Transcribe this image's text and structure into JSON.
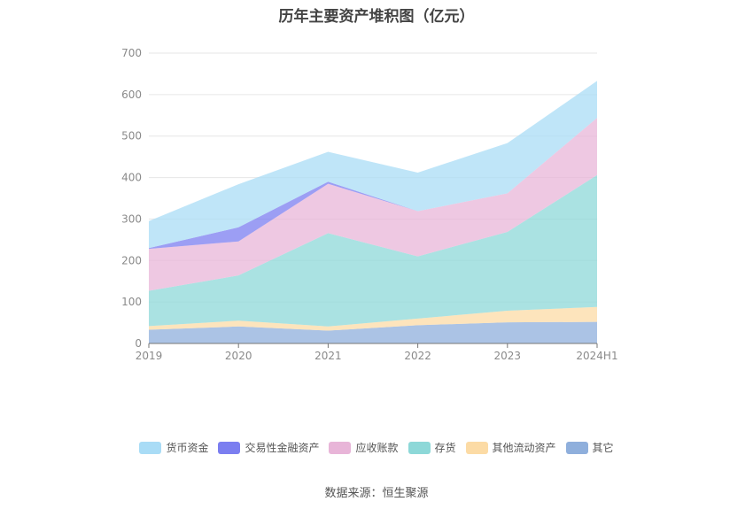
{
  "title": "历年主要资产堆积图（亿元）",
  "source": "数据来源：恒生聚源",
  "chart_data": {
    "type": "area",
    "stacked": true,
    "categories": [
      "2019",
      "2020",
      "2021",
      "2022",
      "2023",
      "2024H1"
    ],
    "ylim": [
      0,
      700
    ],
    "yticks": [
      0,
      100,
      200,
      300,
      400,
      500,
      600,
      700
    ],
    "grid": true,
    "legend_position": "bottom",
    "series": [
      {
        "name": "其它",
        "color": "#8fafdc",
        "values": [
          33,
          41,
          31,
          44,
          51,
          52
        ]
      },
      {
        "name": "其他流动资产",
        "color": "#fcdba5",
        "values": [
          9,
          14,
          10,
          16,
          28,
          36
        ]
      },
      {
        "name": "存货",
        "color": "#8dd8d8",
        "values": [
          85,
          109,
          225,
          150,
          190,
          318
        ]
      },
      {
        "name": "应收账款",
        "color": "#e8b5d8",
        "values": [
          101,
          82,
          119,
          109,
          93,
          138
        ]
      },
      {
        "name": "交易性金融资产",
        "color": "#7b7ef0",
        "values": [
          2,
          34,
          5,
          0,
          0,
          0
        ]
      },
      {
        "name": "货币资金",
        "color": "#a9dcf6",
        "values": [
          65,
          104,
          72,
          93,
          121,
          89
        ]
      }
    ],
    "legend_order": [
      "货币资金",
      "交易性金融资产",
      "应收账款",
      "存货",
      "其他流动资产",
      "其它"
    ]
  }
}
